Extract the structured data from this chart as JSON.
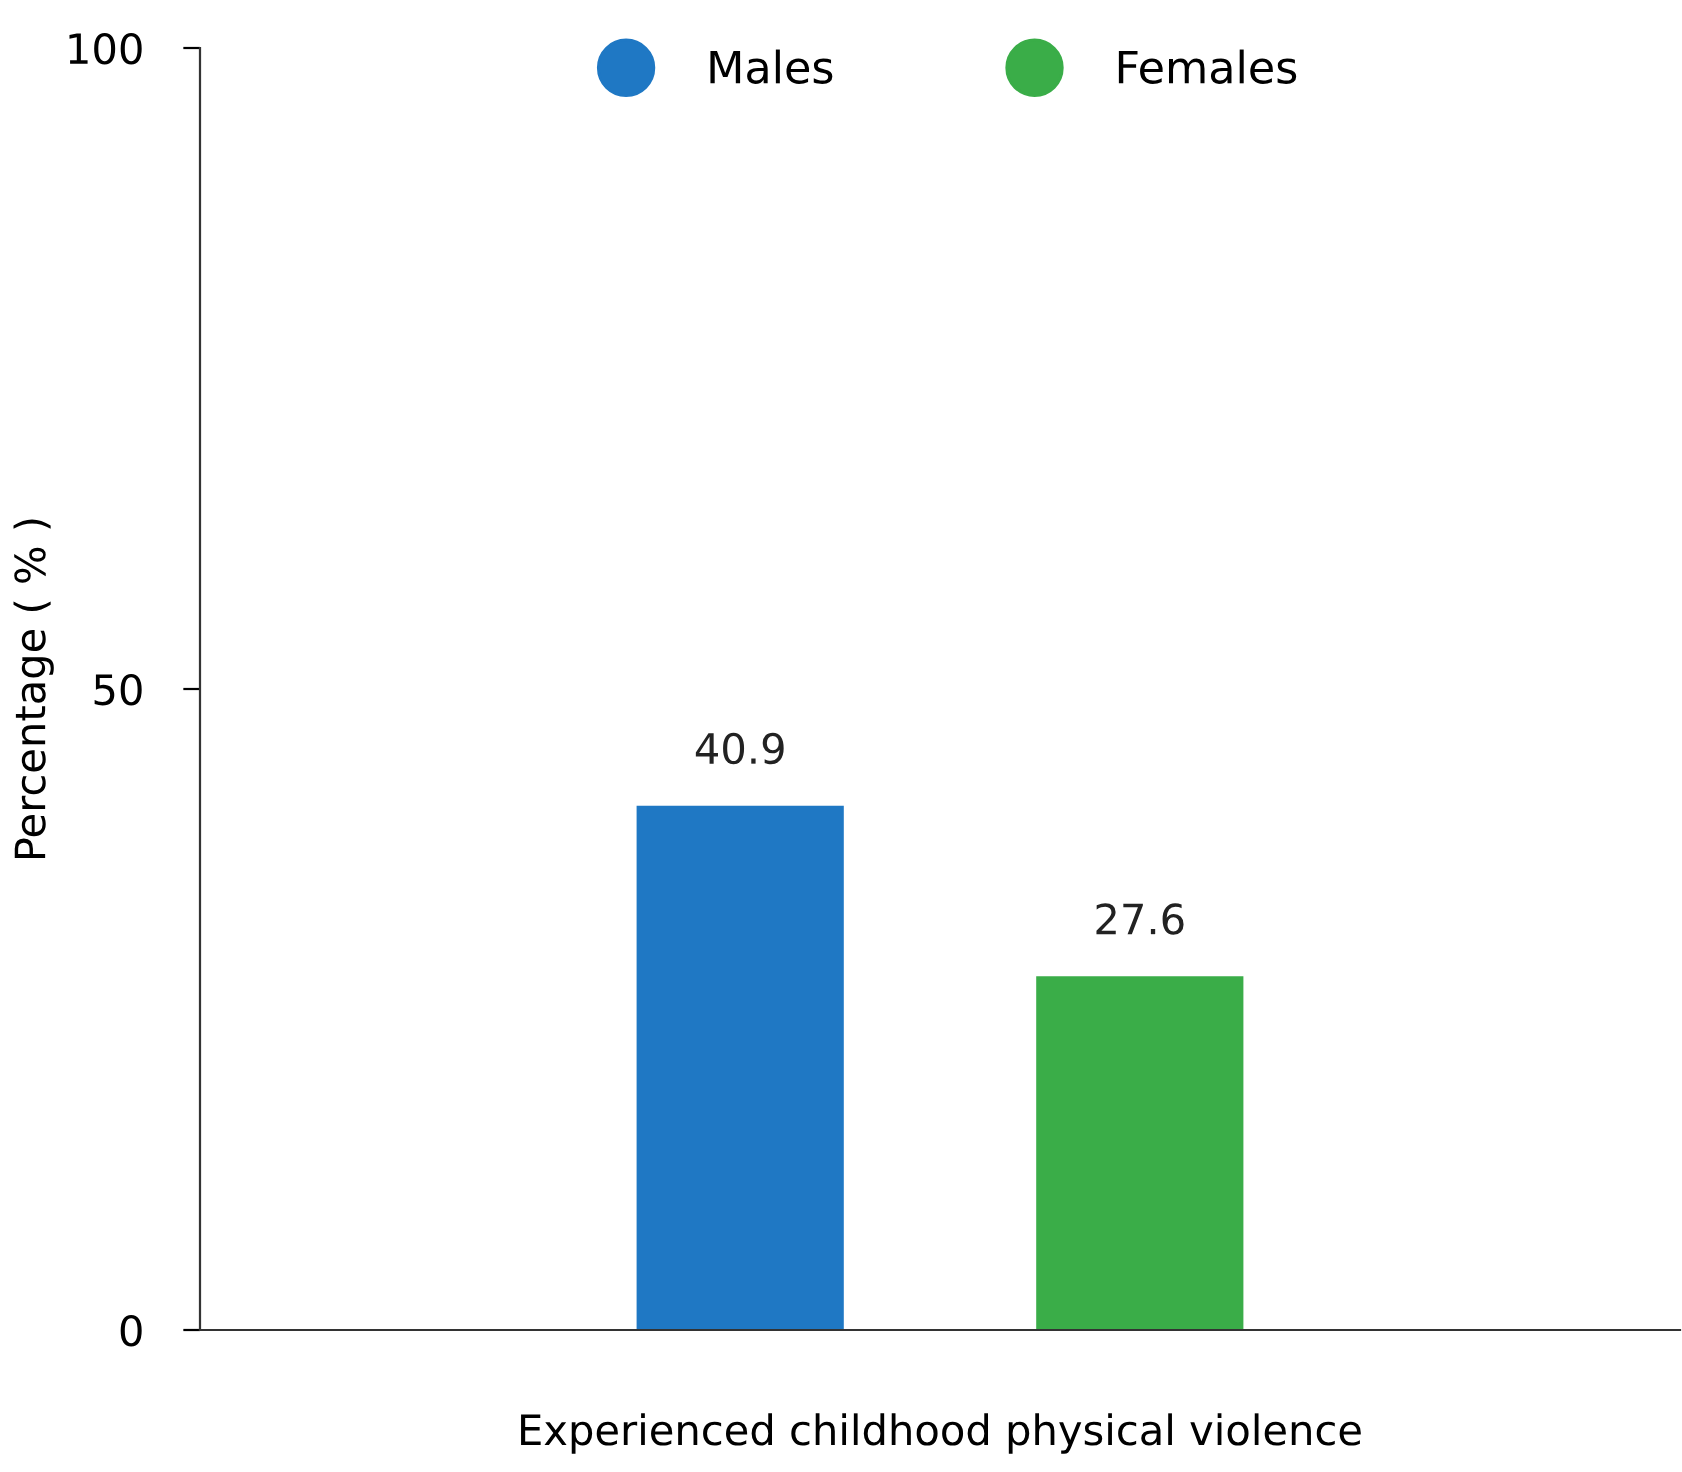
{
  "chart_data": {
    "type": "bar",
    "ylabel": "Percentage ( % )",
    "categories": [
      "Experienced childhood physical violence"
    ],
    "series": [
      {
        "name": "Males",
        "color": "#1f78c4",
        "values": [
          40.9
        ]
      },
      {
        "name": "Females",
        "color": "#3aad48",
        "values": [
          27.6
        ]
      }
    ],
    "ylim": [
      0,
      100
    ],
    "yticks": [
      0,
      50,
      100
    ],
    "data_labels": true,
    "grid": false,
    "legend": "top"
  }
}
